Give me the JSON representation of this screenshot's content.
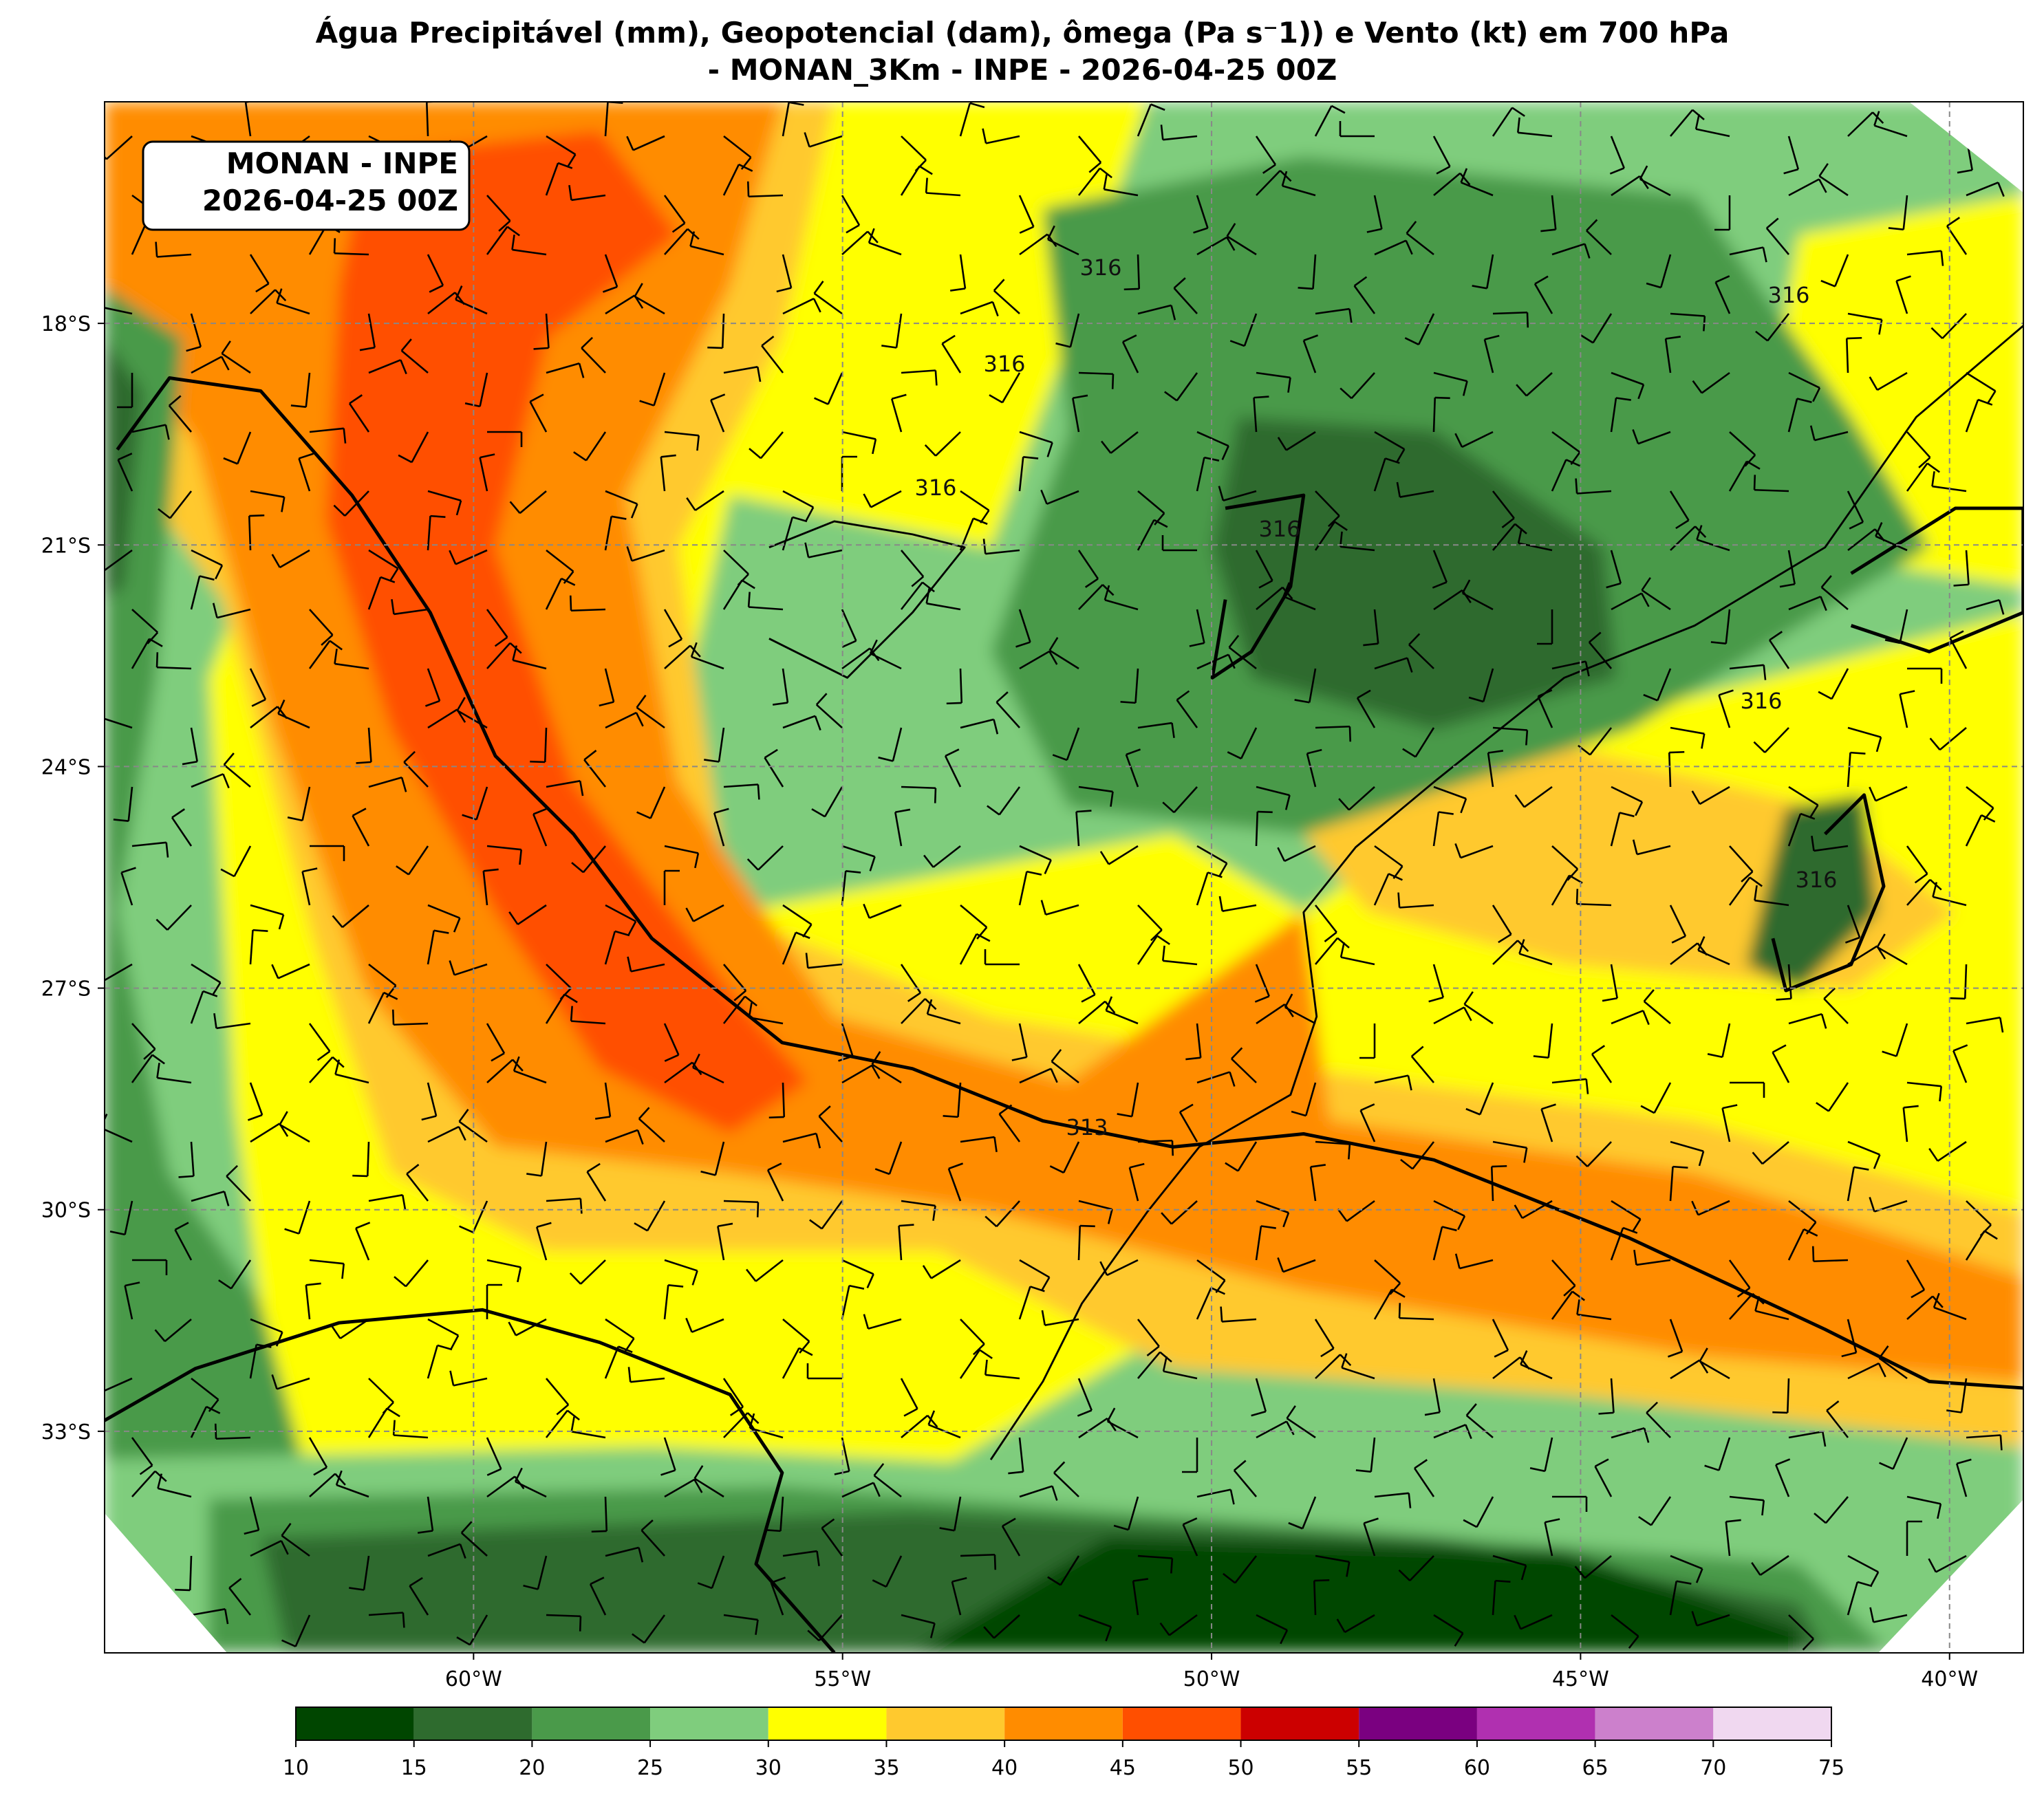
{
  "title": [
    "Água Precipitável (mm), Geopotencial (dam), ômega (Pa s⁻1)) e Vento (kt) em 700 hPa",
    "- MONAN_3Km - INPE - 2026-04-25 00Z"
  ],
  "label_box": [
    "MONAN - INPE",
    "2026-04-25 00Z"
  ],
  "map": {
    "type": "map",
    "xlim": [
      -65,
      -39
    ],
    "ylim": [
      -36,
      -15
    ],
    "xticks": [
      {
        "value": -60,
        "label": "60°W"
      },
      {
        "value": -55,
        "label": "55°W"
      },
      {
        "value": -50,
        "label": "50°W"
      },
      {
        "value": -45,
        "label": "45°W"
      },
      {
        "value": -40,
        "label": "40°W"
      }
    ],
    "yticks": [
      {
        "value": -18,
        "label": "18°S"
      },
      {
        "value": -21,
        "label": "21°S"
      },
      {
        "value": -24,
        "label": "24°S"
      },
      {
        "value": -27,
        "label": "27°S"
      },
      {
        "value": -30,
        "label": "30°S"
      },
      {
        "value": -33,
        "label": "33°S"
      }
    ],
    "grid": true,
    "contour_labels": [
      "316",
      "316",
      "316",
      "316",
      "316",
      "316",
      "316",
      "313"
    ]
  },
  "colorbar": {
    "levels": [
      10,
      15,
      20,
      25,
      30,
      35,
      40,
      45,
      50,
      55,
      60,
      65,
      70,
      75
    ],
    "colors": [
      "#004600",
      "#2e6b2e",
      "#4a9a4a",
      "#7fcd7d",
      "#ffff00",
      "#ffc92e",
      "#ff8c00",
      "#ff4f00",
      "#cc0000",
      "#7a0080",
      "#b030b0",
      "#cc80cc",
      "#f0d8f0"
    ]
  }
}
